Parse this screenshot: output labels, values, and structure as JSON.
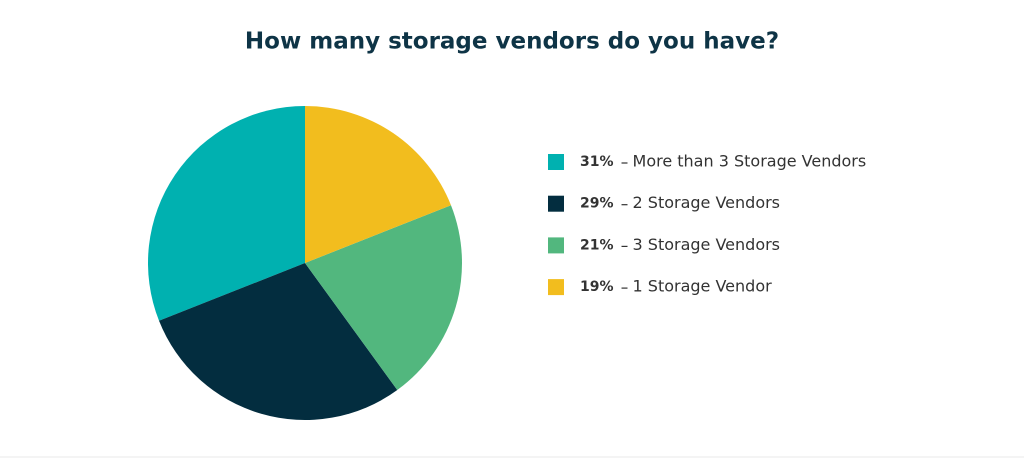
{
  "chart_data": {
    "type": "pie",
    "title": "How many storage vendors do you have?",
    "categories": [
      "More than 3 Storage Vendors",
      "2 Storage Vendors",
      "3 Storage Vendors",
      "1 Storage Vendor"
    ],
    "values": [
      31,
      29,
      21,
      19
    ],
    "value_labels": [
      "31%",
      "29%",
      "21%",
      "19%"
    ],
    "colors": [
      "#00b1b0",
      "#032d3f",
      "#52b77e",
      "#f2bd1e"
    ]
  }
}
